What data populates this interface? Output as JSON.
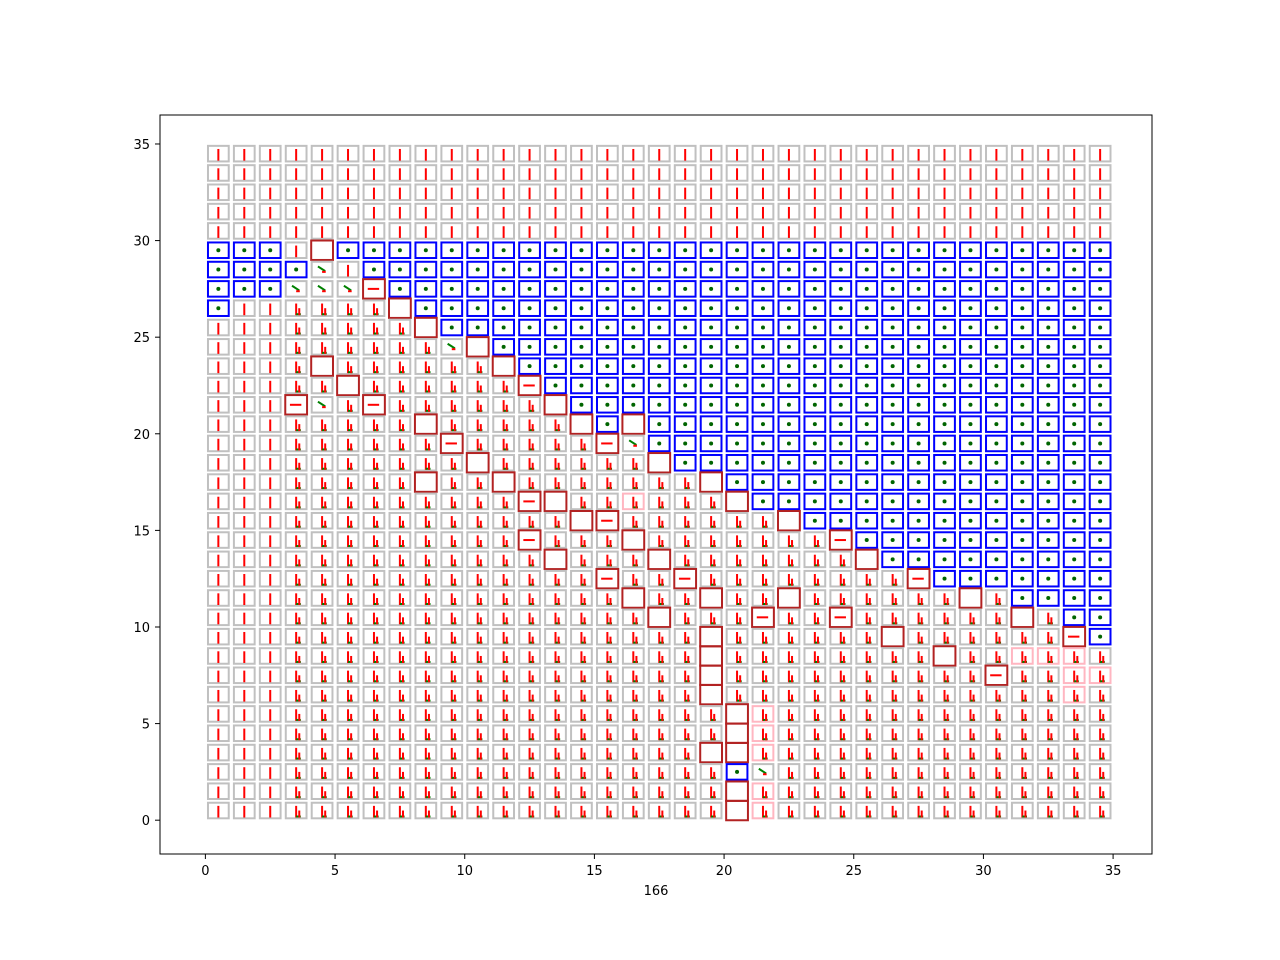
{
  "chart_data": {
    "type": "heatmap",
    "title": "",
    "xlabel": "166",
    "ylabel": "",
    "xlim": [
      -1.75,
      36.5
    ],
    "ylim": [
      -1.75,
      36.5
    ],
    "x_ticks": [
      0,
      5,
      10,
      15,
      20,
      25,
      30,
      35
    ],
    "y_ticks": [
      0,
      5,
      10,
      15,
      20,
      25,
      30,
      35
    ],
    "grid": false,
    "grid_size": 35,
    "colors": {
      "obstacle": "#0000ff",
      "normal": "#c0c0c0",
      "highlight": "#b22222",
      "pink": "#ffb6c1",
      "arrow_red": "#ff0000",
      "arrow_green": "#008000",
      "dot": "#006400"
    },
    "rows": [
      "RRRRRRRRRRRRRRRRRRRRRRRRRRRRRRRRRRR",
      "RRRRRRRRRRRRRRRRRRRRRRRRRRRRRRRRRRR",
      "RRRRRRRRRRRRRRRRRRRRRRRRRRRRRRRRRRR",
      "RRRRRRRRRRRRRRRRRRRRRRRRRRRRRRRRRRR",
      "RRRRRRRRRRRRRRRRRRRRRRRRRRRRRRRRRRR",
      "BBBRHBBBBBBBBBBBBBBBBBBBBBBBBBBBBBB",
      "BBBBDRBBBBBBBBBBBBBBBBBBBBBBBBBBBBB",
      "BBBDDDHBBBBBBBBBBBBBBBBBBBBBBBBBBBB",
      "BUUUUUUHBBBBBBBBBBBBBBBBBBBBBBBBBBB",
      "UUUUUUUUHBBBBBBBBBBBBBBBBBBBBBBBBBB",
      "UUUUUUUUUDHBBBBBBBBBBBBBBBBBBBBBBBB",
      "UUUUHUUUUUUHBBBBBBBBBBBBBBBBBBBBBBB",
      "UUUUUHUUUUUUHBBBBBBBBBBBBBBBBBBBBBB",
      "UUUHDUHUUUUUUHBBBBBBBBBBBBBBBBBBBBB",
      "UUUUUUUUHUUUUUHBHBBBBBBBBBBBBBBBBBB",
      "UUUUUUUUUHUUUUUHDBBBBBBBBBBBBBBBBBB",
      "UUUUUUUUUUHUUUUUUHBBBBBBBBBBBBBBBBB",
      "UUUUUUUUHUUHUUUUUUUHBBBBBBBBBBBBBBB",
      "UUUUUUUUUUUUHHUUPUUUHBBBBBBBBBBBBBB",
      "UUUUUUUUUUUUUUHHUUUUUUHBBBBBBBBBBBB",
      "UUUUUUUUUUUUHUUUHUUUUUUUHBBBBBBBBBB",
      "UUUUUUUUUUUUUHUUUHUUUUUUUHBBBBBBBBB",
      "UUUUUUUUUUUUUUUHUUHUUUUUUUUHBBBBBBB",
      "UUUUUUUUUUUUUUUUHUUHUUHUUUUUUHUBBBB",
      "UUUUUUUUUUUUUUUUUHUUUHUUHUUUUUUHUBB",
      "UUUUUUUUUUUUUUUUUUUHUUUUUUHUUUUUUHB",
      "UUUUUUUUUUUUUUUUUUUHUUUUUUUUHUUPPPU",
      "UUUUUUUUUUUUUUUUUUUHUUUUUUUUUUHUUPP",
      "UUUUUUUUUUUUUUUUUUUHUUUUUUUUUUUUUPU",
      "UUUUUUUUUUUUUUUUUUUUHPUUUUUUUUUUUUU",
      "UUUUUUUUUUUUUUUUUUUUHPUUUUUUUUUUUUU",
      "UUUUUUUUUUUUUUUUUUUHHPUUUUUUUUUUUUU",
      "UUUUUUUUUUUUUUUUUUUUBDUUUUUUUUUUUUU",
      "UUUUUUUUUUUUUUUUUUUUHPUUUUUUUUUUUUU",
      "UUUUUUUUUUUUUUUUUUUUHPUUUUUUUUUUUUU"
    ]
  }
}
